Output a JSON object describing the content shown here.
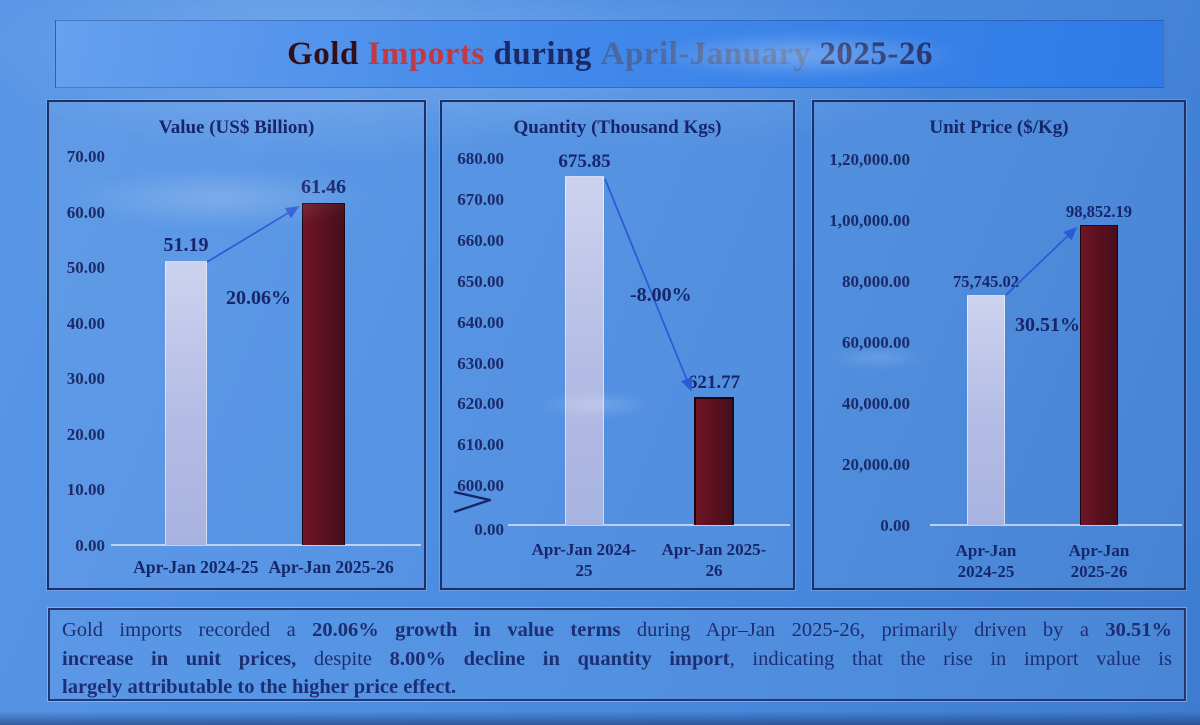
{
  "header": {
    "segments": [
      {
        "text": "Gold",
        "color": "#331019"
      },
      {
        "text": " Imports",
        "color": "#c23844"
      },
      {
        "text": " during ",
        "color": "#1b2a66"
      },
      {
        "text": "April-January",
        "color": "#4a679f"
      },
      {
        "text": " 2025-26",
        "color": "#1b2a66"
      }
    ]
  },
  "chart_data": [
    {
      "type": "bar",
      "title": "Value (US$ Billion)",
      "categories": [
        "Apr-Jan 2024-25",
        "Apr-Jan 2025-26"
      ],
      "category_lines": [
        [
          "Apr-Jan 2024-25"
        ],
        [
          "Apr-Jan 2025-26"
        ]
      ],
      "values": [
        51.19,
        61.46
      ],
      "value_labels": [
        "51.19",
        "61.46"
      ],
      "change_label": "20.06%",
      "change_direction": "up",
      "y_ticks": [
        "70.00",
        "60.00",
        "50.00",
        "40.00",
        "30.00",
        "20.00",
        "10.00",
        "0.00"
      ],
      "ylim": [
        0,
        70
      ],
      "y_axis_break": false,
      "grid": false,
      "legend": false,
      "bar_colors": {
        "2024-25": "#b9c3e6",
        "2025-26": "#5a1120"
      }
    },
    {
      "type": "bar",
      "title": "Quantity (Thousand Kgs)",
      "categories": [
        "Apr-Jan 2024-25",
        "Apr-Jan 2025-26"
      ],
      "category_lines": [
        [
          "Apr-Jan 2024-",
          "25"
        ],
        [
          "Apr-Jan 2025-",
          "26"
        ]
      ],
      "values": [
        675.85,
        621.77
      ],
      "value_labels": [
        "675.85",
        "621.77"
      ],
      "change_label": "-8.00%",
      "change_direction": "down",
      "y_ticks": [
        "680.00",
        "670.00",
        "660.00",
        "650.00",
        "640.00",
        "630.00",
        "620.00",
        "610.00",
        "600.00",
        "0.00"
      ],
      "ylim": [
        600,
        680
      ],
      "y_axis_break": true,
      "grid": false,
      "legend": false,
      "bar_colors": {
        "2024-25": "#b9c3e6",
        "2025-26": "#5a1120"
      }
    },
    {
      "type": "bar",
      "title": "Unit Price ($/Kg)",
      "categories": [
        "Apr-Jan 2024-25",
        "Apr-Jan 2025-26"
      ],
      "category_lines": [
        [
          "Apr-Jan",
          "2024-25"
        ],
        [
          "Apr-Jan",
          "2025-26"
        ]
      ],
      "values": [
        75745.02,
        98852.19
      ],
      "value_labels": [
        "75,745.02",
        "98,852.19"
      ],
      "change_label": "30.51%",
      "change_direction": "up",
      "y_ticks": [
        "1,20,000.00",
        "1,00,000.00",
        "80,000.00",
        "60,000.00",
        "40,000.00",
        "20,000.00",
        "0.00"
      ],
      "ylim": [
        0,
        120000
      ],
      "y_axis_break": false,
      "grid": false,
      "legend": false,
      "number_format": "indian",
      "bar_colors": {
        "2024-25": "#b9c3e6",
        "2025-26": "#5a1120"
      }
    }
  ],
  "summary": {
    "lines": [
      [
        {
          "text": "Gold imports recorded a ",
          "bold": false
        },
        {
          "text": "20.06% growth in value terms",
          "bold": true
        },
        {
          "text": " during Apr–Jan 2025-26, primarily driven by a ",
          "bold": false
        },
        {
          "text": "30.51%",
          "bold": true
        }
      ],
      [
        {
          "text": "increase in unit prices,",
          "bold": true
        },
        {
          "text": " despite ",
          "bold": false
        },
        {
          "text": "8.00% decline in quantity import",
          "bold": true
        },
        {
          "text": ", indicating that the rise in import value is",
          "bold": false
        }
      ],
      [
        {
          "text": "largely attributable to the higher price effect.",
          "bold": true
        }
      ]
    ]
  },
  "colors": {
    "background_blue": "#4b8de4",
    "title_band_blue": "#3f84e8",
    "panel_border_navy": "#1d3166",
    "text_navy": "#17266a",
    "summary_navy": "#1c2f74",
    "bar_light_lavender": "#b9c3e6",
    "bar_dark_maroon": "#5a1120",
    "arrow_blue": "#2b5ad4",
    "title_red": "#c23844"
  }
}
